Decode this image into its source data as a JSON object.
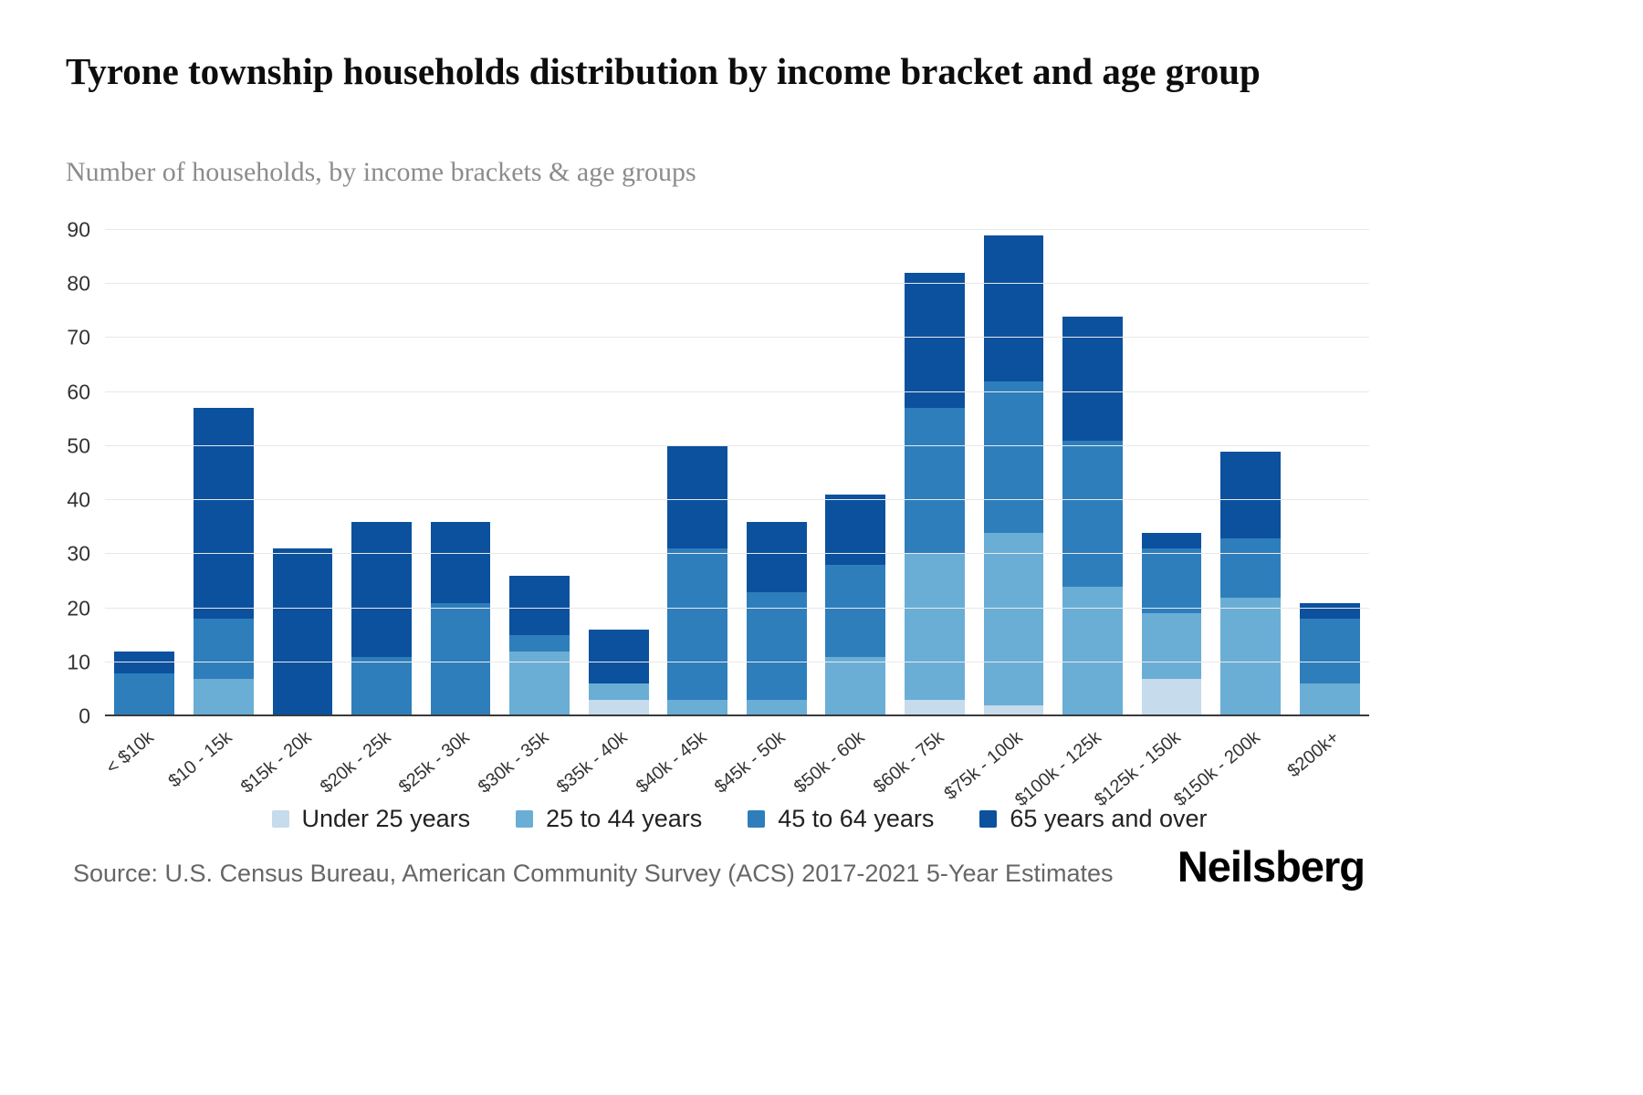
{
  "header": {
    "title": "Tyrone township households distribution by income bracket and age group",
    "subtitle": "Number of households, by income brackets & age groups"
  },
  "footer": {
    "source": "Source: U.S. Census Bureau, American Community Survey (ACS) 2017-2021 5-Year Estimates",
    "brand": "Neilsberg"
  },
  "chart_data": {
    "type": "bar",
    "stacked": true,
    "title": "Tyrone township households distribution by income bracket and age group",
    "subtitle": "Number of households, by income brackets & age groups",
    "xlabel": "",
    "ylabel": "Number of households",
    "ylim": [
      0,
      90
    ],
    "yticks": [
      0,
      10,
      20,
      30,
      40,
      50,
      60,
      70,
      80,
      90
    ],
    "grid": "horizontal",
    "legend_position": "bottom",
    "categories": [
      "< $10k",
      "$10 - 15k",
      "$15k - 20k",
      "$20k - 25k",
      "$25k - 30k",
      "$30k - 35k",
      "$35k - 40k",
      "$40k - 45k",
      "$45k - 50k",
      "$50k - 60k",
      "$60k - 75k",
      "$75k - 100k",
      "$100k - 125k",
      "$125k - 150k",
      "$150k - 200k",
      "$200k+"
    ],
    "series": [
      {
        "name": "Under 25 years",
        "color": "#c6dbeb",
        "values": [
          0,
          0,
          0,
          0,
          0,
          0,
          3,
          0,
          0,
          0,
          3,
          2,
          0,
          7,
          0,
          0
        ]
      },
      {
        "name": "25 to 44 years",
        "color": "#6aaed6",
        "values": [
          0,
          7,
          0,
          0,
          0,
          12,
          3,
          3,
          3,
          11,
          27,
          32,
          24,
          12,
          22,
          6
        ]
      },
      {
        "name": "45 to 64 years",
        "color": "#2e7ebc",
        "values": [
          8,
          11,
          0,
          11,
          21,
          3,
          0,
          28,
          20,
          17,
          27,
          28,
          27,
          12,
          11,
          12
        ]
      },
      {
        "name": "65 years and over",
        "color": "#0b519e",
        "values": [
          4,
          39,
          31,
          25,
          15,
          11,
          10,
          19,
          13,
          13,
          25,
          27,
          23,
          3,
          16,
          3
        ]
      }
    ]
  }
}
